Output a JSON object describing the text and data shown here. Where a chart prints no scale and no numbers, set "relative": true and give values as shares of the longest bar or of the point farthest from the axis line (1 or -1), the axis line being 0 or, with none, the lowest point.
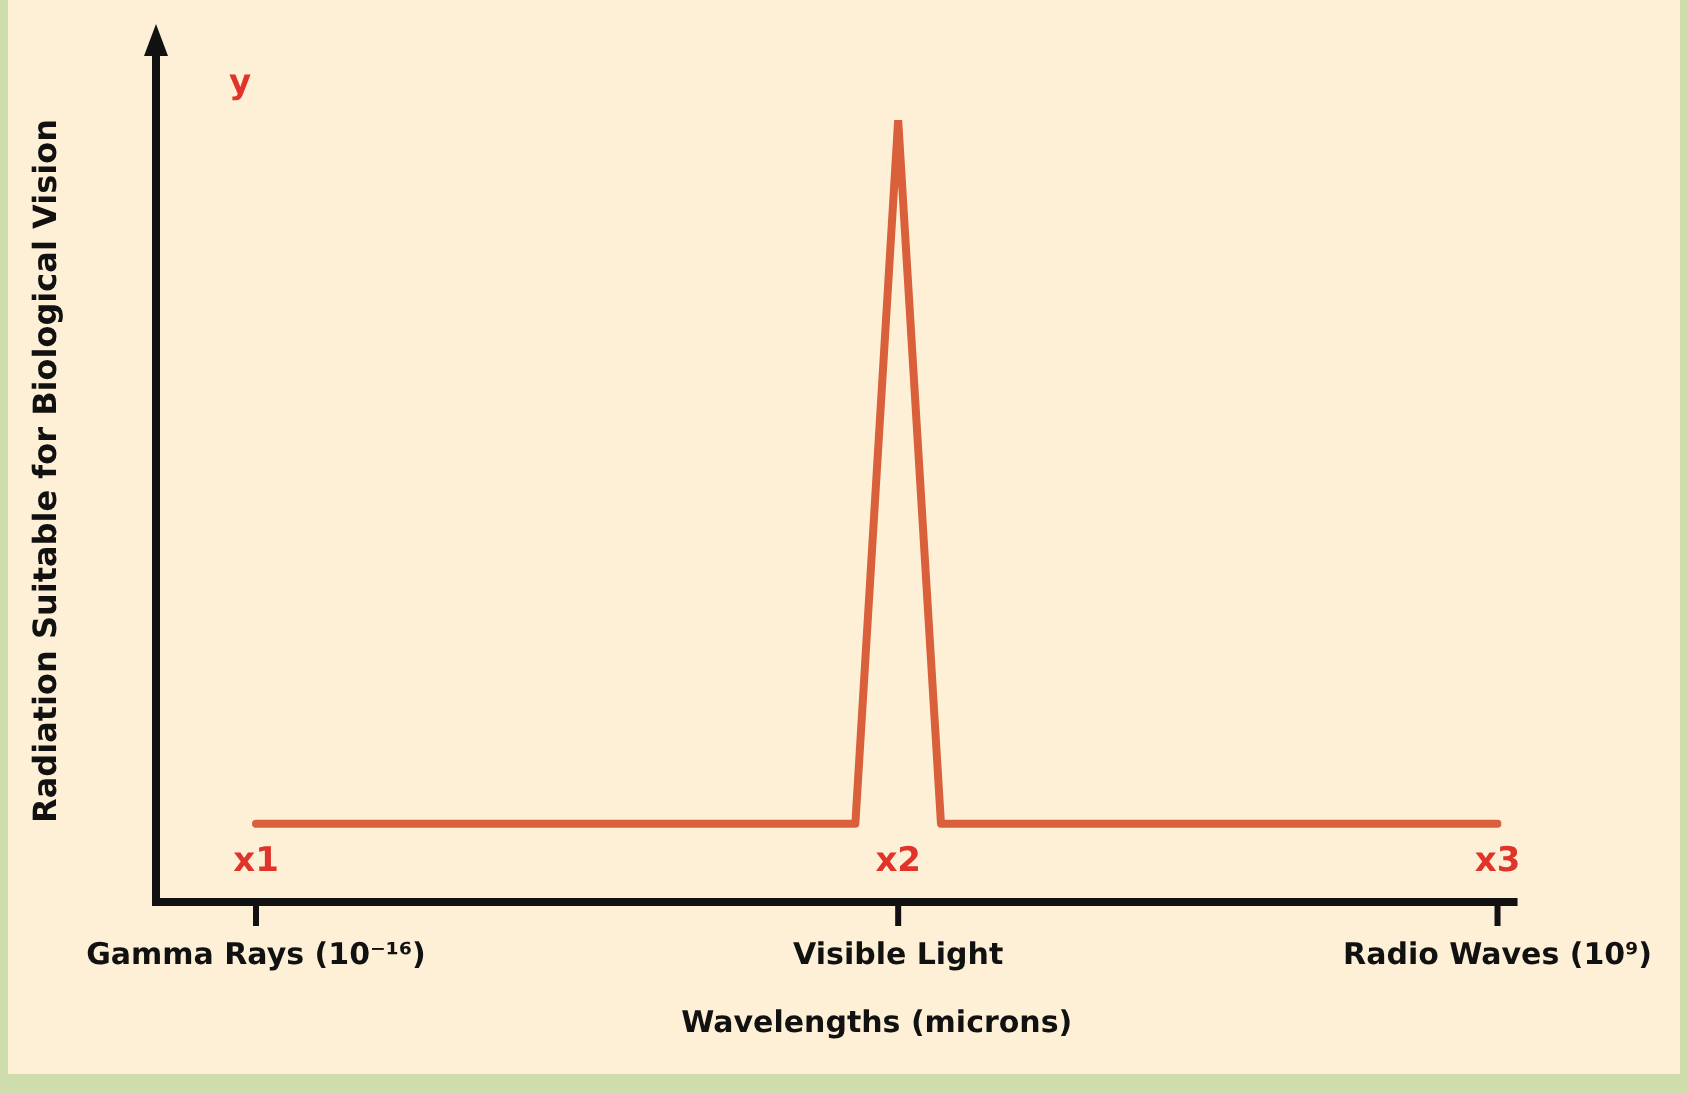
{
  "chart_data": {
    "type": "line",
    "relative": true,
    "color": "#d9603b",
    "marker": "none",
    "line_style": "solid",
    "grid": false,
    "legend": false,
    "xlabel": "Wavelengths (microns)",
    "ylabel": "Radiation Suitable for Biological Vision",
    "categories": [
      "Gamma Rays (10⁻¹⁶)",
      null,
      null,
      null,
      null,
      null,
      null,
      null,
      null,
      null,
      null,
      null,
      null,
      null,
      null,
      "Visible Light",
      null,
      null,
      null,
      null,
      null,
      null,
      null,
      null,
      null,
      null,
      null,
      null,
      null,
      "Radio Waves (10⁹)"
    ],
    "values": [
      0.1,
      null,
      null,
      null,
      null,
      null,
      null,
      null,
      null,
      null,
      null,
      null,
      null,
      null,
      0.1,
      1,
      0.1,
      null,
      null,
      null,
      null,
      null,
      null,
      null,
      null,
      null,
      null,
      null,
      null,
      0.1
    ],
    "annotations": [
      "y",
      "x1",
      "x2",
      "x3"
    ]
  }
}
